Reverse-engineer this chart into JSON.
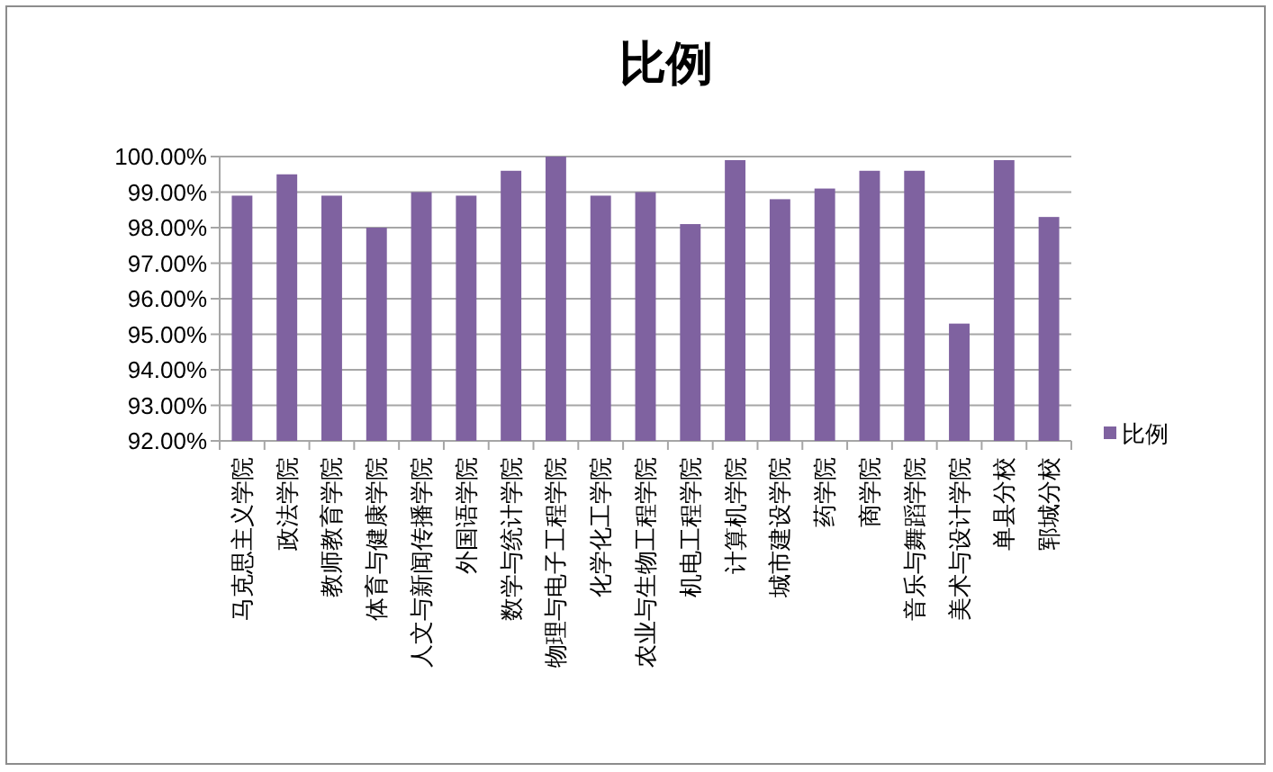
{
  "chart_data": {
    "type": "bar",
    "title": "比例",
    "categories": [
      "马克思主义学院",
      "政法学院",
      "教师教育学院",
      "体育与健康学院",
      "人文与新闻传播学院",
      "外国语学院",
      "数学与统计学院",
      "物理与电子工程学院",
      "化学化工学院",
      "农业与生物工程学院",
      "机电工程学院",
      "计算机学院",
      "城市建设学院",
      "药学院",
      "商学院",
      "音乐与舞蹈学院",
      "美术与设计学院",
      "单县分校",
      "郓城分校"
    ],
    "series": [
      {
        "name": "比例",
        "color": "#7f62a0",
        "values": [
          98.9,
          99.5,
          98.9,
          98.0,
          99.0,
          98.9,
          99.6,
          100.0,
          98.9,
          99.0,
          98.1,
          99.9,
          98.8,
          99.1,
          99.6,
          99.6,
          95.3,
          99.9,
          98.3
        ]
      }
    ],
    "ylim": [
      92,
      100
    ],
    "yticks": [
      {
        "value": 92,
        "label": "92.00%"
      },
      {
        "value": 93,
        "label": "93.00%"
      },
      {
        "value": 94,
        "label": "94.00%"
      },
      {
        "value": 95,
        "label": "95.00%"
      },
      {
        "value": 96,
        "label": "96.00%"
      },
      {
        "value": 97,
        "label": "97.00%"
      },
      {
        "value": 98,
        "label": "98.00%"
      },
      {
        "value": 99,
        "label": "99.00%"
      },
      {
        "value": 100,
        "label": "100.00%"
      }
    ],
    "grid": "y",
    "legend": "right"
  }
}
